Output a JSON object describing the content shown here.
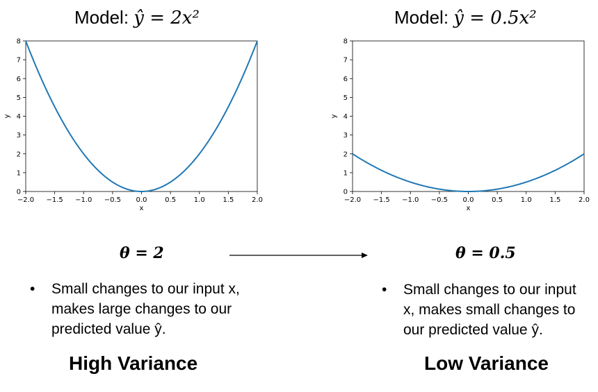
{
  "chart_data": [
    {
      "type": "line",
      "title_prefix": "Model: ",
      "title_math": "ŷ = 2x²",
      "xlabel": "x",
      "ylabel": "y",
      "xlim": [
        -2.0,
        2.0
      ],
      "ylim": [
        0,
        8
      ],
      "xticks": [
        "-2.0",
        "-1.5",
        "-1.0",
        "-0.5",
        "0.0",
        "0.5",
        "1.0",
        "1.5",
        "2.0"
      ],
      "yticks": [
        "0",
        "1",
        "2",
        "3",
        "4",
        "5",
        "6",
        "7",
        "8"
      ],
      "coefficient": 2,
      "x": [
        -2.0,
        -1.75,
        -1.5,
        -1.25,
        -1.0,
        -0.75,
        -0.5,
        -0.25,
        0.0,
        0.25,
        0.5,
        0.75,
        1.0,
        1.25,
        1.5,
        1.75,
        2.0
      ],
      "y": [
        8.0,
        6.125,
        4.5,
        3.125,
        2.0,
        1.125,
        0.5,
        0.125,
        0.0,
        0.125,
        0.5,
        1.125,
        2.0,
        3.125,
        4.5,
        6.125,
        8.0
      ],
      "line_color": "#1f77b4"
    },
    {
      "type": "line",
      "title_prefix": "Model: ",
      "title_math": "ŷ = 0.5x²",
      "xlabel": "x",
      "ylabel": "y",
      "xlim": [
        -2.0,
        2.0
      ],
      "ylim": [
        0,
        8
      ],
      "xticks": [
        "-2.0",
        "-1.5",
        "-1.0",
        "-0.5",
        "0.0",
        "0.5",
        "1.0",
        "1.5",
        "2.0"
      ],
      "yticks": [
        "0",
        "1",
        "2",
        "3",
        "4",
        "5",
        "6",
        "7",
        "8"
      ],
      "coefficient": 0.5,
      "x": [
        -2.0,
        -1.75,
        -1.5,
        -1.25,
        -1.0,
        -0.75,
        -0.5,
        -0.25,
        0.0,
        0.25,
        0.5,
        0.75,
        1.0,
        1.25,
        1.5,
        1.75,
        2.0
      ],
      "y": [
        2.0,
        1.53125,
        1.125,
        0.78125,
        0.5,
        0.28125,
        0.125,
        0.03125,
        0.0,
        0.03125,
        0.125,
        0.28125,
        0.5,
        0.78125,
        1.125,
        1.53125,
        2.0
      ],
      "line_color": "#1f77b4"
    }
  ],
  "left": {
    "theta": "θ = 2",
    "bullet": "Small changes to our input x, makes large changes to our predicted value ŷ.",
    "variance": "High Variance"
  },
  "right": {
    "theta": "θ = 0.5",
    "bullet": "Small changes to our input x, makes small changes to our predicted value ŷ.",
    "variance": "Low Variance"
  },
  "bullet_symbol": "•"
}
